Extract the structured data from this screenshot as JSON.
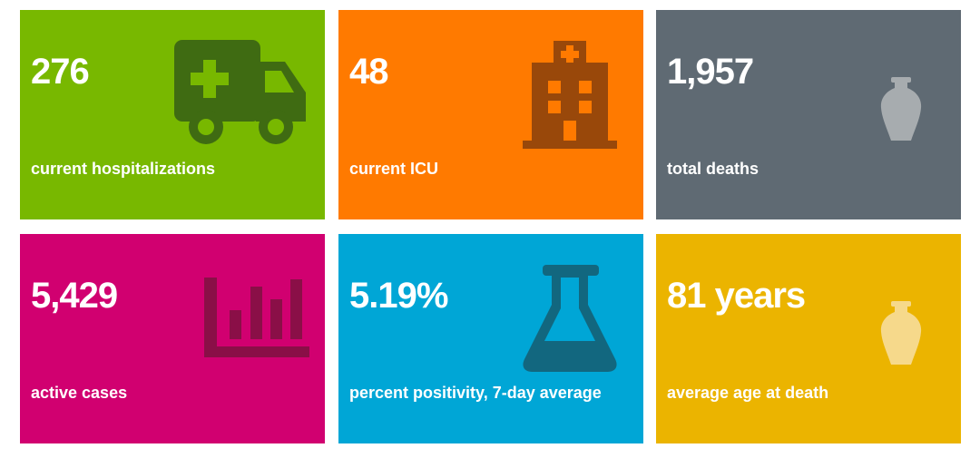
{
  "tiles": [
    {
      "value": "276",
      "label": "current hospitalizations",
      "color": "#78b800",
      "icon": "ambulance-icon",
      "icon_color": "#3f6b12"
    },
    {
      "value": "48",
      "label": "current ICU",
      "color": "#ff7a00",
      "icon": "hospital-icon",
      "icon_color": "#99480a"
    },
    {
      "value": "1,957",
      "label": "total deaths",
      "color": "#5f6a73",
      "icon": "urn-icon",
      "icon_color": "#a7acaf"
    },
    {
      "value": "5,429",
      "label": "active cases",
      "color": "#d10070",
      "icon": "bar-chart-icon",
      "icon_color": "#8a0f47"
    },
    {
      "value": "5.19%",
      "label": "percent positivity, 7-day average",
      "color": "#00a6d6",
      "icon": "flask-icon",
      "icon_color": "#12677f"
    },
    {
      "value": "81 years",
      "label": "average age at death",
      "color": "#ebb400",
      "icon": "urn-icon",
      "icon_color": "#f6d98b"
    }
  ]
}
